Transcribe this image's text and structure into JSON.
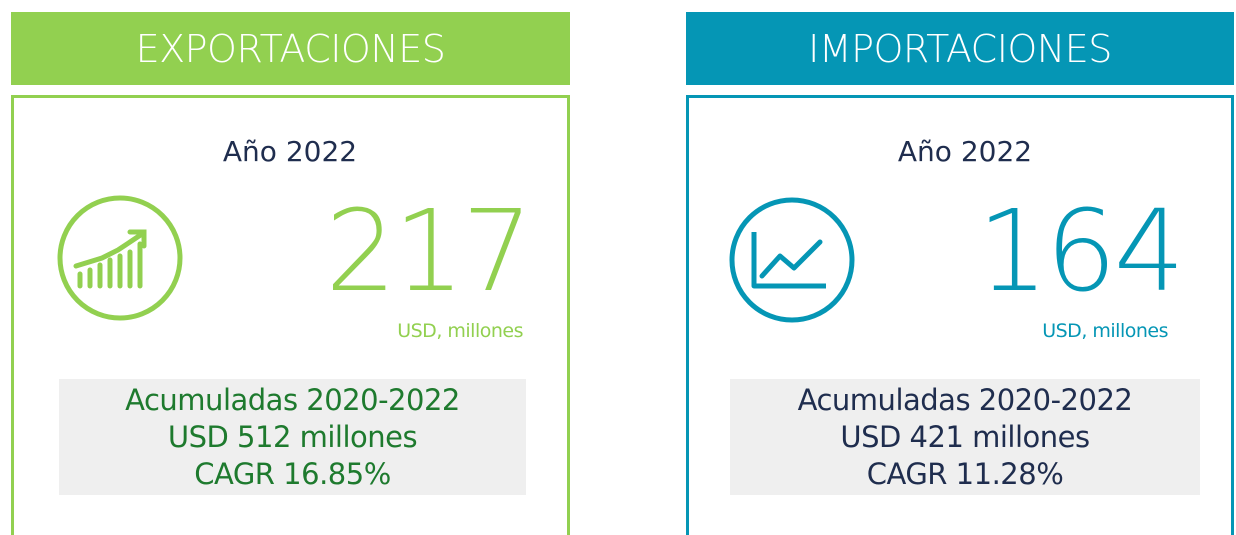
{
  "panels": [
    {
      "title": "EXPORTACIONES",
      "year": "Año 2022",
      "value": 217,
      "unit": "USD, millones",
      "summary": [
        "Acumuladas 2020-2022",
        "USD 512 millones",
        "CAGR 16.85%"
      ],
      "color": "#92d050",
      "summary_color": "#1e7a2e"
    },
    {
      "title": "IMPORTACIONES",
      "year": "Año 2022",
      "value": 164,
      "unit": "USD, millones",
      "summary": [
        "Acumuladas 2020-2022",
        "USD 421 millones",
        "CAGR 11.28%"
      ],
      "color": "#0596b5",
      "summary_color": "#1f2d4e"
    }
  ]
}
